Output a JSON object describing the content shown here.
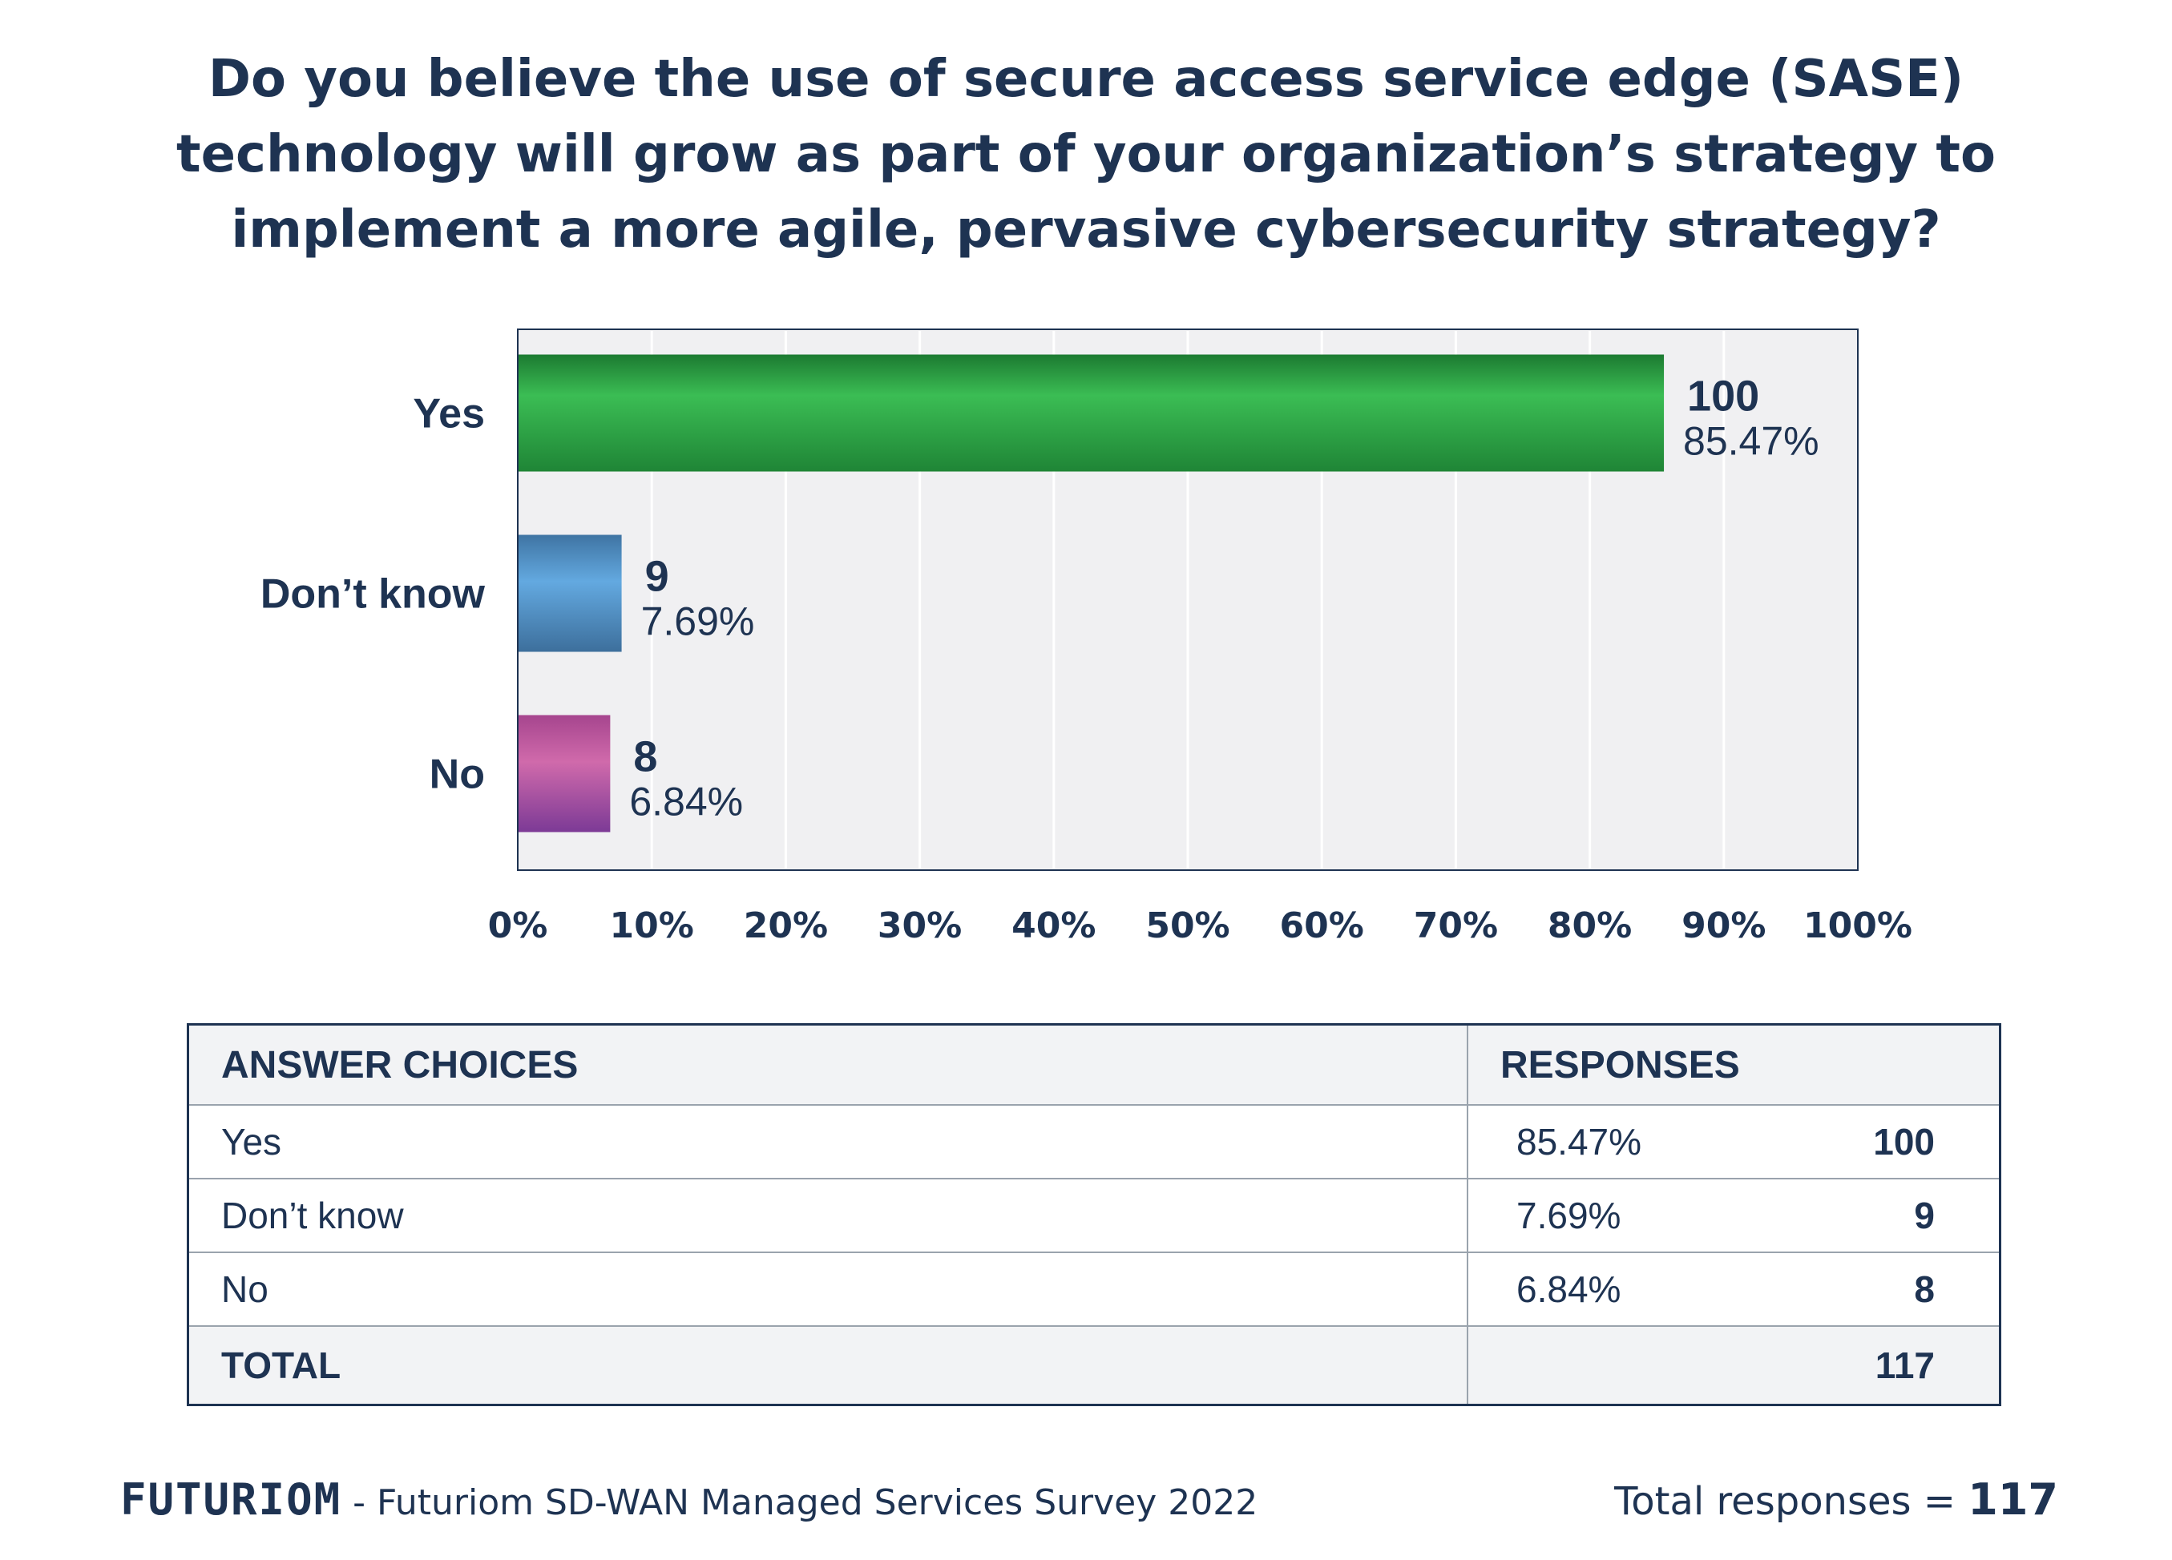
{
  "title_lines": [
    "Do you believe the use of secure access service edge (SASE)",
    "technology will grow as part of your organization’s strategy to",
    "implement a more agile, pervasive cybersecurity strategy?"
  ],
  "chart_data": {
    "type": "bar",
    "orientation": "horizontal",
    "categories": [
      "Yes",
      "Don’t know",
      "No"
    ],
    "values": [
      85.47,
      7.69,
      6.84
    ],
    "counts": [
      100,
      9,
      8
    ],
    "value_labels": [
      "85.47%",
      "7.69%",
      "6.84%"
    ],
    "count_labels": [
      "100",
      "9",
      "8"
    ],
    "bar_colors": [
      "#2ea84a",
      "#5b9fd4",
      "#c063a7"
    ],
    "xlim": [
      0,
      100
    ],
    "xticks": [
      "0%",
      "10%",
      "20%",
      "30%",
      "40%",
      "50%",
      "60%",
      "70%",
      "80%",
      "90%",
      "100%"
    ],
    "grid": true
  },
  "table": {
    "headers": [
      "ANSWER CHOICES",
      "RESPONSES"
    ],
    "rows": [
      {
        "choice": "Yes",
        "percent": "85.47%",
        "count": "100"
      },
      {
        "choice": "Don’t know",
        "percent": "7.69%",
        "count": "9"
      },
      {
        "choice": "No",
        "percent": "6.84%",
        "count": "8"
      }
    ],
    "total_label": "TOTAL",
    "total_count": "117"
  },
  "footer": {
    "brand": "FUTURIOM",
    "source": "- Futuriom SD-WAN Managed Services Survey 2022",
    "responses_label": "Total responses =",
    "responses_value": "117"
  }
}
